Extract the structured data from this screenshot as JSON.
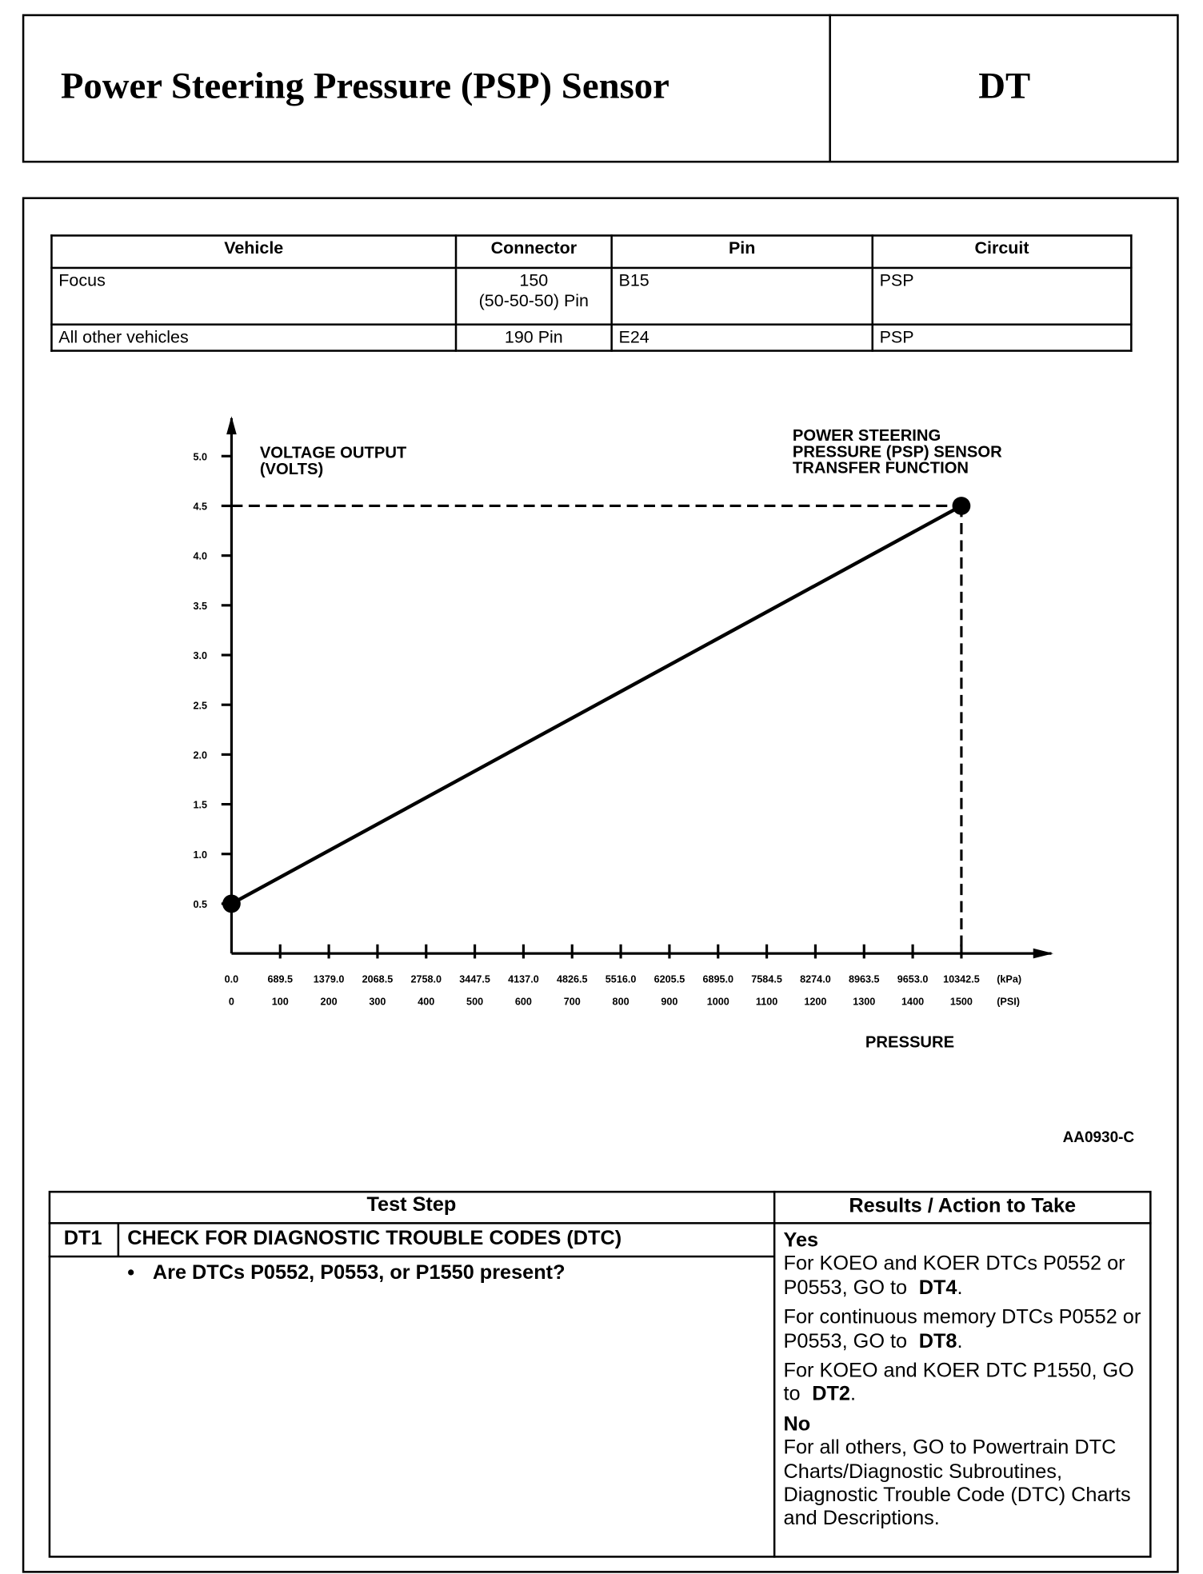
{
  "header": {
    "title": "Power Steering Pressure (PSP) Sensor",
    "code": "DT"
  },
  "pin_table": {
    "columns": [
      "Vehicle",
      "Connector",
      "Pin",
      "Circuit"
    ],
    "rows": [
      [
        "Focus",
        [
          "150",
          "(50-50-50) Pin"
        ],
        "B15",
        "PSP"
      ],
      [
        "All other vehicles",
        [
          "190 Pin"
        ],
        "E24",
        "PSP"
      ]
    ]
  },
  "chart_data": {
    "type": "line",
    "y_label": [
      "VOLTAGE OUTPUT",
      "(VOLTS)"
    ],
    "annotation": [
      "POWER STEERING",
      "PRESSURE (PSP) SENSOR",
      "TRANSFER FUNCTION"
    ],
    "x_label": "PRESSURE",
    "x_unit": "(PSI)",
    "x2_unit": "(kPa)",
    "x": [
      0,
      1500
    ],
    "series": [
      {
        "color": "#000000",
        "values": [
          0.5,
          4.5
        ]
      }
    ],
    "xlim": [
      0,
      1685
    ],
    "xticks": [
      0,
      100,
      200,
      300,
      400,
      500,
      600,
      700,
      800,
      900,
      1000,
      1100,
      1200,
      1300,
      1400,
      1500
    ],
    "x2lim": [
      0,
      11618
    ],
    "x2ticks": [
      {
        "value": 0,
        "label": "0.0"
      },
      689.5,
      {
        "value": 1379,
        "label": "1379.0"
      },
      2068.5,
      {
        "value": 2758,
        "label": "2758.0"
      },
      3447.5,
      {
        "value": 4137,
        "label": "4137.0"
      },
      4826.5,
      {
        "value": 5516,
        "label": "5516.0"
      },
      6205.5,
      {
        "value": 6895,
        "label": "6895.0"
      },
      7584.5,
      {
        "value": 8274,
        "label": "8274.0"
      },
      8963.5,
      {
        "value": 9653,
        "label": "9653.0"
      },
      10342.5
    ],
    "ylim": [
      0,
      5.3
    ],
    "yticks": [
      0.5,
      {
        "value": 1,
        "label": "1.0"
      },
      1.5,
      {
        "value": 2,
        "label": "2.0"
      },
      2.5,
      {
        "value": 3,
        "label": "3.0"
      },
      3.5,
      {
        "value": 4,
        "label": "4.0"
      },
      4.5,
      {
        "value": 5,
        "label": "5.0"
      }
    ],
    "grid": false,
    "figure_id": "AA0930-C"
  },
  "test_table": {
    "columns": [
      "Test Step",
      "Results / Action to Take"
    ],
    "step": {
      "id": "DT1",
      "title": "CHECK FOR DIAGNOSTIC TROUBLE CODES (DTC)",
      "question": "Are DTCs P0552, P0553, or P1550 present?"
    },
    "results": [
      {
        "label": "Yes",
        "items": [
          {
            "text": "For KOEO and KOER DTCs P0552 or P0553, GO to",
            "step": "DT4",
            "end": "."
          },
          {
            "text": "For continuous memory DTCs P0552 or P0553, GO to",
            "step": "DT8",
            "end": "."
          },
          {
            "text": "For KOEO and KOER DTC P1550, GO to",
            "step": "DT2",
            "end": "."
          }
        ]
      },
      {
        "label": "No",
        "items": [
          {
            "text": "For all others, GO to Powertrain DTC Charts/Diagnostic Subroutines, Diagnostic Trouble Code (DTC) Charts and Descriptions."
          }
        ]
      }
    ]
  }
}
